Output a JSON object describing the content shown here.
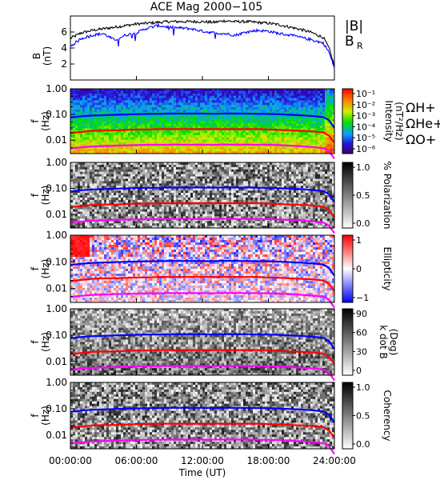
{
  "title": "ACE Mag 2000−105",
  "chart_data": [
    {
      "type": "line",
      "panel": "magnetic-field",
      "ylabel": "B",
      "yunit": "(nT)",
      "ylim": [
        0,
        8
      ],
      "yticks": [
        "2",
        "4",
        "6"
      ],
      "x": [
        "00:00:00",
        "01:00:00",
        "02:00:00",
        "03:00:00",
        "04:00:00",
        "05:00:00",
        "06:00:00",
        "07:00:00",
        "08:00:00",
        "09:00:00",
        "10:00:00",
        "11:00:00",
        "12:00:00",
        "13:00:00",
        "14:00:00",
        "15:00:00",
        "16:00:00",
        "17:00:00",
        "18:00:00",
        "19:00:00",
        "20:00:00",
        "21:00:00",
        "22:00:00",
        "23:00:00",
        "23:30:00",
        "24:00:00"
      ],
      "series": [
        {
          "name": "|B|",
          "color": "#000000",
          "values": [
            5.2,
            5.9,
            6.2,
            6.4,
            6.6,
            6.8,
            7.0,
            7.1,
            7.2,
            7.3,
            7.3,
            7.3,
            7.3,
            7.2,
            7.4,
            7.3,
            7.3,
            7.2,
            7.1,
            6.9,
            6.6,
            6.3,
            5.9,
            5.3,
            4.0,
            1.8
          ]
        },
        {
          "name": "B",
          "subscript": "R",
          "color": "#0000ff",
          "values": [
            4.2,
            5.2,
            5.6,
            5.8,
            5.0,
            5.6,
            5.9,
            6.5,
            6.8,
            6.6,
            6.5,
            6.4,
            6.1,
            5.9,
            5.8,
            5.6,
            6.0,
            6.2,
            6.1,
            5.8,
            5.6,
            5.3,
            5.0,
            4.6,
            3.5,
            1.5
          ]
        }
      ]
    },
    {
      "type": "heatmap",
      "panel": "intensity",
      "ylabel": "f",
      "yunit": "(Hz)",
      "yscale": "log",
      "ylim": [
        0.003,
        1.0
      ],
      "yticks": [
        "1.00",
        "0.10",
        "0.01"
      ],
      "colorbar": {
        "label": "Intensity",
        "unit": "(nT²/Hz)",
        "ticks": [
          "10⁻¹",
          "10⁻²",
          "10⁻³",
          "10⁻⁴",
          "10⁻⁵",
          "10⁻⁶"
        ],
        "palette": "rainbow"
      },
      "legend": [
        "ΩH+",
        "ΩHe+",
        "ΩO+"
      ]
    },
    {
      "type": "heatmap",
      "panel": "polarization",
      "ylabel": "f",
      "yunit": "(Hz)",
      "yscale": "log",
      "ylim": [
        0.003,
        1.0
      ],
      "yticks": [
        "1.00",
        "0.10",
        "0.01"
      ],
      "colorbar": {
        "label": "% Polarization",
        "ticks": [
          "1.0",
          "0.5",
          "0.0"
        ],
        "palette": "gray"
      }
    },
    {
      "type": "heatmap",
      "panel": "ellipticity",
      "ylabel": "f",
      "yunit": "(Hz)",
      "yscale": "log",
      "ylim": [
        0.003,
        1.0
      ],
      "yticks": [
        "1.00",
        "0.10",
        "0.01"
      ],
      "colorbar": {
        "label": "Ellipticity",
        "ticks": [
          "1",
          "0",
          "−1"
        ],
        "palette": "red-white-blue"
      }
    },
    {
      "type": "heatmap",
      "panel": "k-dot-b",
      "ylabel": "f",
      "yunit": "(Hz)",
      "yscale": "log",
      "ylim": [
        0.003,
        1.0
      ],
      "yticks": [
        "1.00",
        "0.10",
        "0.01"
      ],
      "colorbar": {
        "label": "k dot B",
        "unit": "(Deg)",
        "ticks": [
          "90",
          "60",
          "30",
          "0"
        ],
        "palette": "gray"
      }
    },
    {
      "type": "heatmap",
      "panel": "coherency",
      "ylabel": "f",
      "yunit": "(Hz)",
      "yscale": "log",
      "ylim": [
        0.003,
        1.0
      ],
      "yticks": [
        "1.00",
        "0.10",
        "0.01"
      ],
      "colorbar": {
        "label": "Coherency",
        "ticks": [
          "1.0",
          "0.5",
          "0.0"
        ],
        "palette": "gray"
      }
    }
  ],
  "gyrofrequency": {
    "x": [
      "00:00:00",
      "01:00:00",
      "02:00:00",
      "03:00:00",
      "04:00:00",
      "05:00:00",
      "06:00:00",
      "07:00:00",
      "08:00:00",
      "09:00:00",
      "10:00:00",
      "11:00:00",
      "12:00:00",
      "13:00:00",
      "14:00:00",
      "15:00:00",
      "16:00:00",
      "17:00:00",
      "18:00:00",
      "19:00:00",
      "20:00:00",
      "21:00:00",
      "22:00:00",
      "23:00:00",
      "23:30:00",
      "24:00:00"
    ],
    "lines": [
      {
        "name": "ΩH+",
        "color": "#0000ff",
        "values": [
          0.076,
          0.085,
          0.091,
          0.094,
          0.097,
          0.1,
          0.103,
          0.105,
          0.106,
          0.108,
          0.108,
          0.108,
          0.108,
          0.106,
          0.109,
          0.108,
          0.108,
          0.106,
          0.105,
          0.102,
          0.097,
          0.093,
          0.087,
          0.079,
          0.06,
          0.03
        ]
      },
      {
        "name": "ΩHe+",
        "color": "#ff0000",
        "values": [
          0.019,
          0.021,
          0.023,
          0.024,
          0.024,
          0.025,
          0.026,
          0.026,
          0.027,
          0.027,
          0.027,
          0.027,
          0.027,
          0.027,
          0.027,
          0.027,
          0.027,
          0.027,
          0.026,
          0.025,
          0.024,
          0.023,
          0.022,
          0.02,
          0.015,
          0.008
        ]
      },
      {
        "name": "ΩO+",
        "color": "#ff00ff",
        "values": [
          0.0048,
          0.0053,
          0.0057,
          0.0059,
          0.0061,
          0.0063,
          0.0064,
          0.0066,
          0.0066,
          0.0067,
          0.0067,
          0.0067,
          0.0067,
          0.0066,
          0.0068,
          0.0067,
          0.0067,
          0.0066,
          0.0066,
          0.0064,
          0.0061,
          0.0058,
          0.0054,
          0.0049,
          0.0038,
          0.0019
        ]
      }
    ]
  },
  "xaxis": {
    "ticks": [
      "00:00:00",
      "06:00:00",
      "12:00:00",
      "18:00:00",
      "24:00:00"
    ],
    "label": "Time (UT)"
  }
}
